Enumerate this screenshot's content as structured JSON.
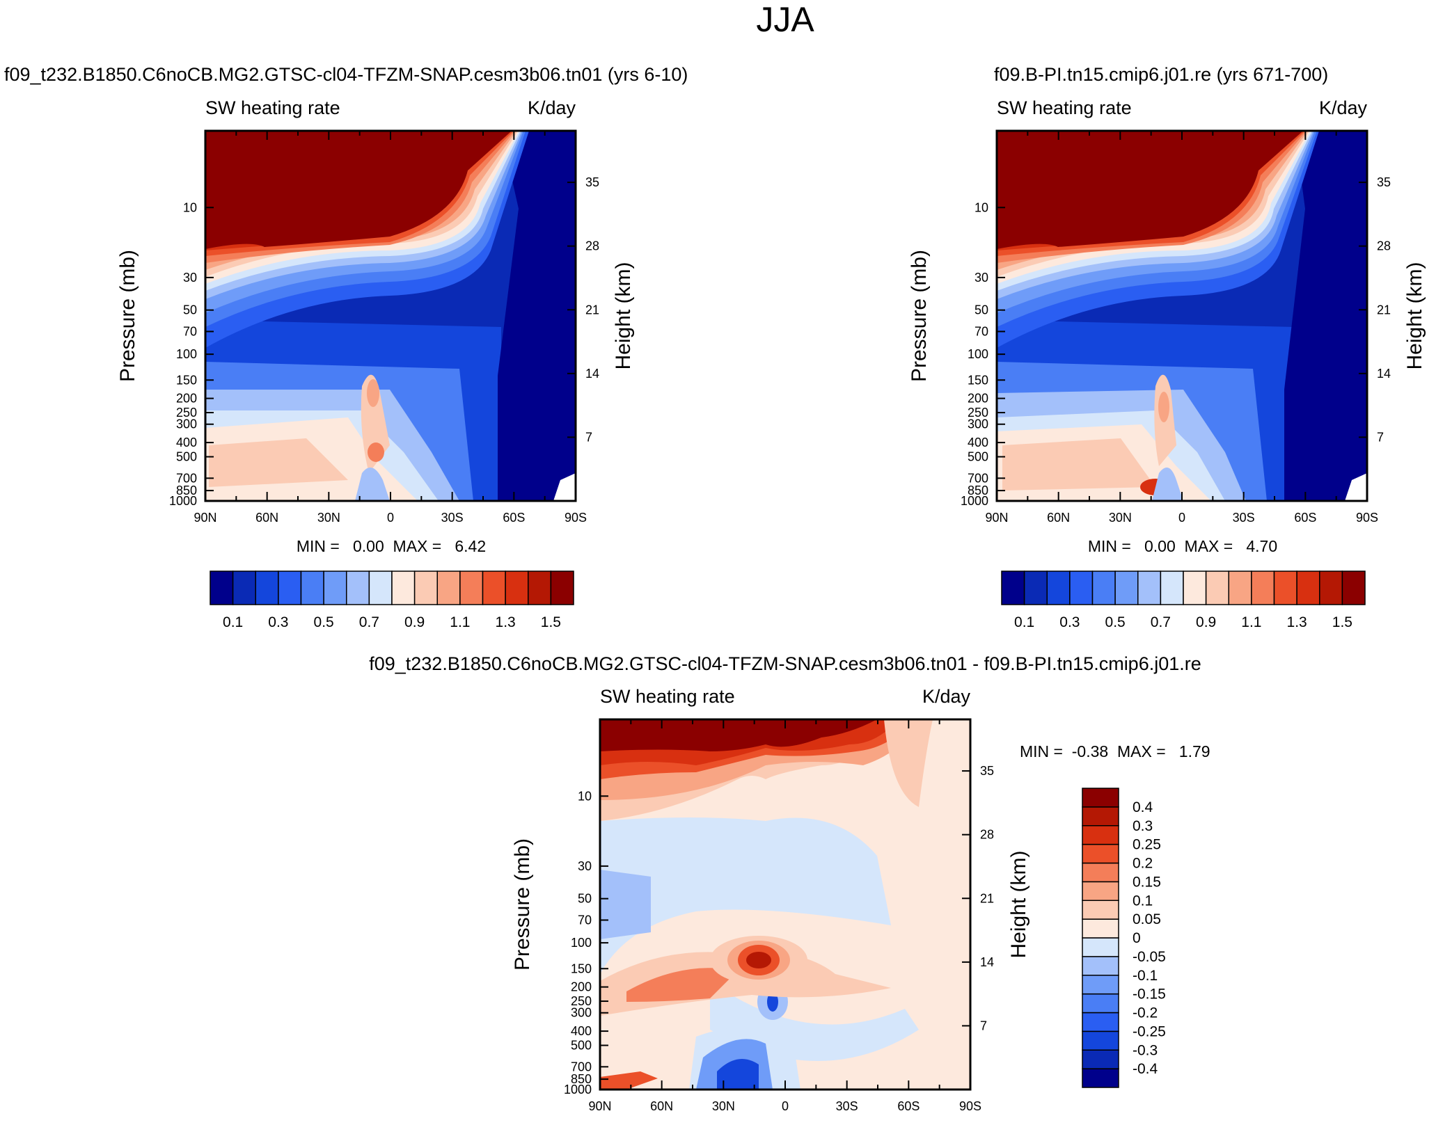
{
  "figure": {
    "title": "JJA"
  },
  "chart_data": [
    {
      "type": "heatmap",
      "id": "p1",
      "title": "f09_t232.B1850.C6noCB.MG2.GTSC-cl04-TFZM-SNAP.cesm3b06.tn01 (yrs 6-10)",
      "left_string": "SW heating rate",
      "right_string": "K/day",
      "xlabel": "",
      "ylabel": "Pressure (mb)",
      "ylabel_right": "Height (km)",
      "x_ticks": [
        "90N",
        "60N",
        "30N",
        "0",
        "30S",
        "60S",
        "90S"
      ],
      "y_ticks": [
        "10",
        "30",
        "50",
        "70",
        "100",
        "150",
        "200",
        "250",
        "300",
        "400",
        "500",
        "700",
        "850",
        "1000"
      ],
      "y_ticks_right": [
        "35",
        "28",
        "21",
        "14",
        "7"
      ],
      "stats": "MIN =   0.00  MAX =   6.42",
      "colorbar": {
        "orientation": "horizontal",
        "colors": [
          "#00008b",
          "#0a2ab5",
          "#1446dc",
          "#2a5ef2",
          "#4a7ef5",
          "#6f9cf8",
          "#a3c0fa",
          "#d5e6fb",
          "#fde9dd",
          "#fbcbb4",
          "#f8a584",
          "#f47e59",
          "#eb5029",
          "#d83010",
          "#b41804",
          "#8b0000"
        ],
        "labels": [
          "0.1",
          "0.3",
          "0.5",
          "0.7",
          "0.9",
          "1.1",
          "1.3",
          "1.5"
        ]
      }
    },
    {
      "type": "heatmap",
      "id": "p2",
      "title": "f09.B-PI.tn15.cmip6.j01.re (yrs 671-700)",
      "left_string": "SW heating rate",
      "right_string": "K/day",
      "xlabel": "",
      "ylabel": "Pressure (mb)",
      "ylabel_right": "Height (km)",
      "x_ticks": [
        "90N",
        "60N",
        "30N",
        "0",
        "30S",
        "60S",
        "90S"
      ],
      "y_ticks": [
        "10",
        "30",
        "50",
        "70",
        "100",
        "150",
        "200",
        "250",
        "300",
        "400",
        "500",
        "700",
        "850",
        "1000"
      ],
      "y_ticks_right": [
        "35",
        "28",
        "21",
        "14",
        "7"
      ],
      "stats": "MIN =   0.00  MAX =   4.70",
      "colorbar": {
        "orientation": "horizontal",
        "colors": [
          "#00008b",
          "#0a2ab5",
          "#1446dc",
          "#2a5ef2",
          "#4a7ef5",
          "#6f9cf8",
          "#a3c0fa",
          "#d5e6fb",
          "#fde9dd",
          "#fbcbb4",
          "#f8a584",
          "#f47e59",
          "#eb5029",
          "#d83010",
          "#b41804",
          "#8b0000"
        ],
        "labels": [
          "0.1",
          "0.3",
          "0.5",
          "0.7",
          "0.9",
          "1.1",
          "1.3",
          "1.5"
        ]
      }
    },
    {
      "type": "heatmap",
      "id": "p3",
      "title": "f09_t232.B1850.C6noCB.MG2.GTSC-cl04-TFZM-SNAP.cesm3b06.tn01 - f09.B-PI.tn15.cmip6.j01.re",
      "left_string": "SW heating rate",
      "right_string": "K/day",
      "xlabel": "",
      "ylabel": "Pressure (mb)",
      "ylabel_right": "Height (km)",
      "x_ticks": [
        "90N",
        "60N",
        "30N",
        "0",
        "30S",
        "60S",
        "90S"
      ],
      "y_ticks": [
        "10",
        "30",
        "50",
        "70",
        "100",
        "150",
        "200",
        "250",
        "300",
        "400",
        "500",
        "700",
        "850",
        "1000"
      ],
      "y_ticks_right": [
        "35",
        "28",
        "21",
        "14",
        "7"
      ],
      "stats": "MIN =  -0.38  MAX =   1.79",
      "colorbar": {
        "orientation": "vertical",
        "colors": [
          "#00008b",
          "#0a2ab5",
          "#1446dc",
          "#2a5ef2",
          "#4a7ef5",
          "#6f9cf8",
          "#a3c0fa",
          "#d5e6fb",
          "#fde9dd",
          "#fbcbb4",
          "#f8a584",
          "#f47e59",
          "#eb5029",
          "#d83010",
          "#b41804",
          "#8b0000"
        ],
        "labels": [
          "0.4",
          "0.3",
          "0.25",
          "0.2",
          "0.15",
          "0.1",
          "0.05",
          "0",
          "-0.05",
          "-0.1",
          "-0.15",
          "-0.2",
          "-0.25",
          "-0.3",
          "-0.4"
        ]
      }
    }
  ]
}
